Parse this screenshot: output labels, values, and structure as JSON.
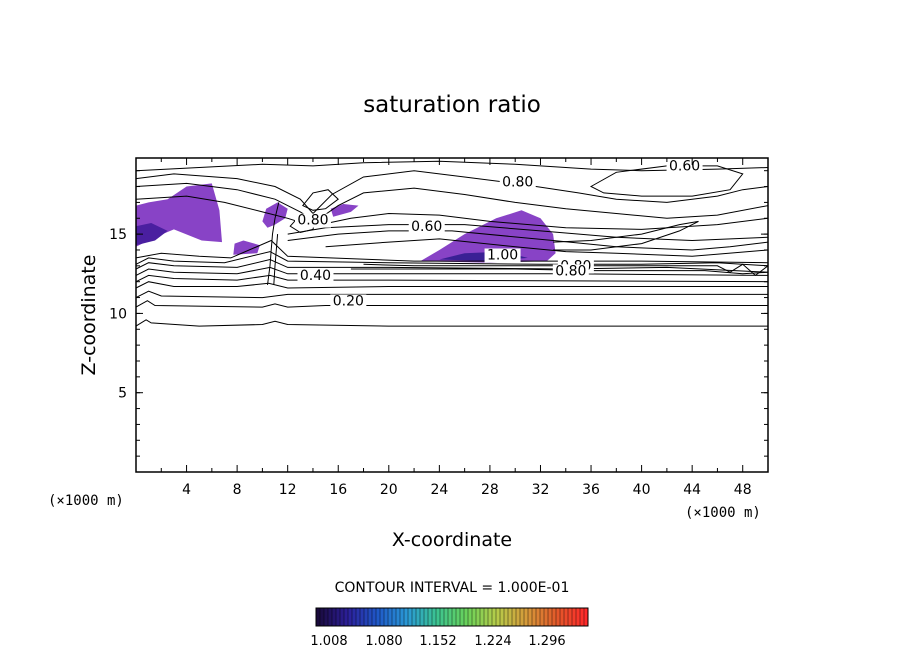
{
  "chart_data": {
    "type": "contour",
    "title": "saturation ratio",
    "xlabel": "X-coordinate",
    "ylabel": "Z-coordinate",
    "x_unit": "(×1000 m)",
    "y_unit": "(×1000 m)",
    "xlim": [
      0,
      50
    ],
    "ylim": [
      0,
      19.8
    ],
    "x_ticks": [
      4,
      8,
      12,
      16,
      20,
      24,
      28,
      32,
      36,
      40,
      44,
      48
    ],
    "y_ticks": [
      5,
      10,
      15
    ],
    "contour_interval": "CONTOUR INTERVAL = 1.000E-01",
    "contour_labels": [
      {
        "text": "0.20",
        "x": 16.8,
        "z": 10.5
      },
      {
        "text": "0.40",
        "x": 14.2,
        "z": 12.1
      },
      {
        "text": "0.60",
        "x": 23.0,
        "z": 15.2
      },
      {
        "text": "0.60",
        "x": 43.4,
        "z": 19.0
      },
      {
        "text": "0.80",
        "x": 30.2,
        "z": 18.0
      },
      {
        "text": "0.80",
        "x": 34.8,
        "z": 12.7
      },
      {
        "text": "0.80",
        "x": 34.4,
        "z": 12.4
      },
      {
        "text": "0.80",
        "x": 14.0,
        "z": 15.6
      },
      {
        "text": "1.00",
        "x": 29.0,
        "z": 13.4
      }
    ],
    "filled_regions_value_min": 1.008,
    "filled_regions_value_max": 1.3,
    "colorbar_ticks": [
      "1.008",
      "1.080",
      "1.152",
      "1.224",
      "1.296"
    ],
    "colorbar_colors": [
      "#1a0a3c",
      "#2c1f9a",
      "#1f58c8",
      "#2a9ad6",
      "#3cc490",
      "#6ad25a",
      "#b6cc4a",
      "#d69a3a",
      "#e25a2a",
      "#ff2a2a"
    ],
    "fill_color": "#7b2fc0"
  }
}
